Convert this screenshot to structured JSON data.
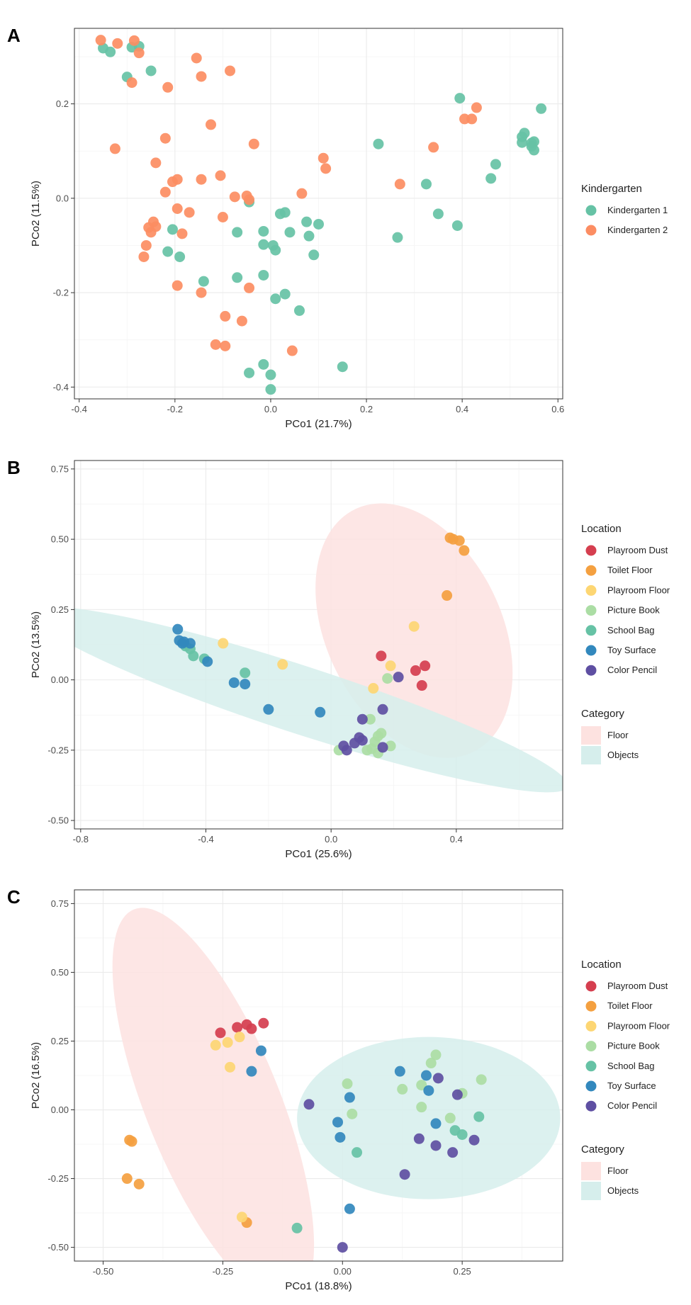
{
  "chart_data": [
    {
      "type": "scatter",
      "panel_label": "A",
      "xlabel": "PCo1 (21.7%)",
      "ylabel": "PCo2 (11.5%)",
      "xlim": [
        -0.41,
        0.61
      ],
      "ylim": [
        -0.425,
        0.36
      ],
      "xticks": [
        -0.4,
        -0.2,
        0.0,
        0.2,
        0.4,
        0.6
      ],
      "xtick_labels": [
        "-0.4",
        "-0.2",
        "0.0",
        "0.2",
        "0.4",
        "0.6"
      ],
      "yticks": [
        -0.4,
        -0.2,
        0.0,
        0.2
      ],
      "ytick_labels": [
        "-0.4",
        "-0.2",
        "0.0",
        "0.2"
      ],
      "legend": {
        "title": "Kindergarten",
        "position": "right"
      },
      "series": [
        {
          "name": "Kindergarten 1",
          "color": "#66c2a5",
          "points": [
            [
              -0.35,
              0.318
            ],
            [
              -0.335,
              0.31
            ],
            [
              -0.3,
              0.257
            ],
            [
              -0.29,
              0.32
            ],
            [
              -0.275,
              0.322
            ],
            [
              -0.25,
              0.27
            ],
            [
              -0.215,
              -0.113
            ],
            [
              -0.205,
              -0.066
            ],
            [
              -0.19,
              -0.124
            ],
            [
              -0.14,
              -0.176
            ],
            [
              -0.07,
              -0.072
            ],
            [
              -0.07,
              -0.168
            ],
            [
              -0.045,
              -0.008
            ],
            [
              -0.045,
              -0.37
            ],
            [
              -0.015,
              -0.07
            ],
            [
              -0.015,
              -0.098
            ],
            [
              -0.015,
              -0.163
            ],
            [
              -0.015,
              -0.352
            ],
            [
              0.0,
              -0.374
            ],
            [
              0.0,
              -0.405
            ],
            [
              0.005,
              -0.1
            ],
            [
              0.01,
              -0.213
            ],
            [
              0.01,
              -0.11
            ],
            [
              0.02,
              -0.033
            ],
            [
              0.03,
              -0.03
            ],
            [
              0.03,
              -0.203
            ],
            [
              0.04,
              -0.072
            ],
            [
              0.06,
              -0.238
            ],
            [
              0.075,
              -0.05
            ],
            [
              0.08,
              -0.08
            ],
            [
              0.09,
              -0.12
            ],
            [
              0.1,
              -0.055
            ],
            [
              0.15,
              -0.357
            ],
            [
              0.225,
              0.115
            ],
            [
              0.265,
              -0.083
            ],
            [
              0.325,
              0.03
            ],
            [
              0.35,
              -0.033
            ],
            [
              0.39,
              -0.058
            ],
            [
              0.395,
              0.212
            ],
            [
              0.46,
              0.042
            ],
            [
              0.47,
              0.072
            ],
            [
              0.525,
              0.13
            ],
            [
              0.525,
              0.118
            ],
            [
              0.53,
              0.138
            ],
            [
              0.545,
              0.117
            ],
            [
              0.545,
              0.11
            ],
            [
              0.55,
              0.102
            ],
            [
              0.55,
              0.12
            ],
            [
              0.565,
              0.19
            ]
          ]
        },
        {
          "name": "Kindergarten 2",
          "color": "#fc8d62",
          "points": [
            [
              -0.355,
              0.335
            ],
            [
              -0.325,
              0.105
            ],
            [
              -0.32,
              0.328
            ],
            [
              -0.29,
              0.245
            ],
            [
              -0.285,
              0.334
            ],
            [
              -0.275,
              0.308
            ],
            [
              -0.265,
              -0.124
            ],
            [
              -0.26,
              -0.1
            ],
            [
              -0.255,
              -0.062
            ],
            [
              -0.25,
              -0.072
            ],
            [
              -0.245,
              -0.05
            ],
            [
              -0.24,
              -0.06
            ],
            [
              -0.24,
              0.075
            ],
            [
              -0.22,
              0.013
            ],
            [
              -0.22,
              0.127
            ],
            [
              -0.215,
              0.235
            ],
            [
              -0.205,
              0.035
            ],
            [
              -0.195,
              0.04
            ],
            [
              -0.195,
              -0.022
            ],
            [
              -0.195,
              -0.185
            ],
            [
              -0.185,
              -0.075
            ],
            [
              -0.17,
              -0.03
            ],
            [
              -0.155,
              0.297
            ],
            [
              -0.145,
              0.04
            ],
            [
              -0.145,
              0.258
            ],
            [
              -0.145,
              -0.2
            ],
            [
              -0.125,
              0.156
            ],
            [
              -0.115,
              -0.31
            ],
            [
              -0.105,
              0.048
            ],
            [
              -0.1,
              -0.04
            ],
            [
              -0.095,
              -0.25
            ],
            [
              -0.095,
              -0.313
            ],
            [
              -0.085,
              0.27
            ],
            [
              -0.075,
              0.003
            ],
            [
              -0.06,
              -0.26
            ],
            [
              -0.05,
              0.005
            ],
            [
              -0.045,
              -0.19
            ],
            [
              -0.045,
              -0.003
            ],
            [
              -0.035,
              0.115
            ],
            [
              0.045,
              -0.323
            ],
            [
              0.065,
              0.01
            ],
            [
              0.11,
              0.085
            ],
            [
              0.115,
              0.063
            ],
            [
              0.27,
              0.03
            ],
            [
              0.34,
              0.108
            ],
            [
              0.405,
              0.168
            ],
            [
              0.42,
              0.168
            ],
            [
              0.43,
              0.192
            ]
          ]
        }
      ]
    },
    {
      "type": "scatter",
      "panel_label": "B",
      "xlabel": "PCo1 (25.6%)",
      "ylabel": "PCo2 (13.5%)",
      "xlim": [
        -0.82,
        0.74
      ],
      "ylim": [
        -0.53,
        0.78
      ],
      "xticks": [
        -0.8,
        -0.4,
        0.0,
        0.4
      ],
      "xtick_labels": [
        "-0.8",
        "-0.4",
        "0.0",
        "0.4"
      ],
      "yticks": [
        -0.5,
        -0.25,
        0.0,
        0.25,
        0.5,
        0.75
      ],
      "ytick_labels": [
        "-0.50",
        "-0.25",
        "0.00",
        "0.25",
        "0.50",
        "0.75"
      ],
      "legend": {
        "title": "Location",
        "position": "right"
      },
      "category_legend": {
        "title": "Category",
        "items": [
          {
            "name": "Floor",
            "color": "#fde2e0"
          },
          {
            "name": "Objects",
            "color": "#d6eeec"
          }
        ]
      },
      "ellipses": [
        {
          "category": "Floor",
          "center": [
            0.265,
            0.175
          ],
          "rx": 0.28,
          "ry": 0.48,
          "angle_deg": 26
        },
        {
          "category": "Objects",
          "center": [
            -0.1,
            -0.07
          ],
          "rx": 0.9,
          "ry": 0.12,
          "angle_deg": -18
        }
      ],
      "series": [
        {
          "name": "Playroom Dust",
          "color": "#d53e4f",
          "points": [
            [
              0.16,
              0.085
            ],
            [
              0.27,
              0.033
            ],
            [
              0.3,
              0.05
            ],
            [
              0.29,
              -0.02
            ]
          ]
        },
        {
          "name": "Toilet Floor",
          "color": "#f4a040",
          "points": [
            [
              0.38,
              0.505
            ],
            [
              0.39,
              0.5
            ],
            [
              0.41,
              0.495
            ],
            [
              0.425,
              0.46
            ],
            [
              0.37,
              0.3
            ]
          ]
        },
        {
          "name": "Playroom Floor",
          "color": "#fdd673",
          "points": [
            [
              -0.345,
              0.13
            ],
            [
              -0.155,
              0.055
            ],
            [
              0.265,
              0.19
            ],
            [
              0.19,
              0.05
            ],
            [
              0.135,
              -0.03
            ]
          ]
        },
        {
          "name": "Picture Book",
          "color": "#abdda4",
          "points": [
            [
              0.18,
              0.005
            ],
            [
              0.125,
              -0.14
            ],
            [
              0.15,
              -0.2
            ],
            [
              0.16,
              -0.19
            ],
            [
              0.14,
              -0.22
            ],
            [
              0.13,
              -0.245
            ],
            [
              0.15,
              -0.26
            ],
            [
              0.19,
              -0.235
            ],
            [
              0.025,
              -0.25
            ],
            [
              0.115,
              -0.25
            ]
          ]
        },
        {
          "name": "School Bag",
          "color": "#66c2a5",
          "points": [
            [
              -0.465,
              0.12
            ],
            [
              -0.45,
              0.11
            ],
            [
              -0.44,
              0.085
            ],
            [
              -0.405,
              0.075
            ],
            [
              -0.275,
              0.025
            ]
          ]
        },
        {
          "name": "Toy Surface",
          "color": "#3288bd",
          "points": [
            [
              -0.49,
              0.18
            ],
            [
              -0.485,
              0.14
            ],
            [
              -0.475,
              0.13
            ],
            [
              -0.47,
              0.135
            ],
            [
              -0.45,
              0.13
            ],
            [
              -0.395,
              0.065
            ],
            [
              -0.31,
              -0.01
            ],
            [
              -0.275,
              -0.015
            ],
            [
              -0.2,
              -0.105
            ],
            [
              -0.035,
              -0.115
            ]
          ]
        },
        {
          "name": "Color Pencil",
          "color": "#5e4fa2",
          "points": [
            [
              0.215,
              0.01
            ],
            [
              0.165,
              -0.105
            ],
            [
              0.1,
              -0.14
            ],
            [
              0.04,
              -0.235
            ],
            [
              0.05,
              -0.25
            ],
            [
              0.075,
              -0.225
            ],
            [
              0.09,
              -0.205
            ],
            [
              0.1,
              -0.215
            ],
            [
              0.165,
              -0.24
            ]
          ]
        }
      ]
    },
    {
      "type": "scatter",
      "panel_label": "C",
      "xlabel": "PCo1 (18.8%)",
      "ylabel": "PCo2 (16.5%)",
      "xlim": [
        -0.56,
        0.46
      ],
      "ylim": [
        -0.55,
        0.8
      ],
      "xticks": [
        -0.5,
        -0.25,
        0.0,
        0.25
      ],
      "xtick_labels": [
        "-0.50",
        "-0.25",
        "0.00",
        "0.25"
      ],
      "yticks": [
        -0.5,
        -0.25,
        0.0,
        0.25,
        0.5,
        0.75
      ],
      "ytick_labels": [
        "-0.50",
        "-0.25",
        "0.00",
        "0.25",
        "0.50",
        "0.75"
      ],
      "legend": {
        "title": "Location",
        "position": "right"
      },
      "category_legend": {
        "title": "Category",
        "items": [
          {
            "name": "Floor",
            "color": "#fde2e0"
          },
          {
            "name": "Objects",
            "color": "#d6eeec"
          }
        ]
      },
      "ellipses": [
        {
          "category": "Floor",
          "center": [
            -0.27,
            0.015
          ],
          "rx": 0.14,
          "ry": 0.77,
          "angle_deg": 22
        },
        {
          "category": "Objects",
          "center": [
            0.18,
            -0.03
          ],
          "rx": 0.275,
          "ry": 0.295,
          "angle_deg": 0
        }
      ],
      "series": [
        {
          "name": "Playroom Dust",
          "color": "#d53e4f",
          "points": [
            [
              -0.255,
              0.28
            ],
            [
              -0.22,
              0.3
            ],
            [
              -0.2,
              0.31
            ],
            [
              -0.19,
              0.295
            ],
            [
              -0.165,
              0.315
            ]
          ]
        },
        {
          "name": "Toilet Floor",
          "color": "#f4a040",
          "points": [
            [
              -0.445,
              -0.11
            ],
            [
              -0.44,
              -0.115
            ],
            [
              -0.45,
              -0.25
            ],
            [
              -0.425,
              -0.27
            ],
            [
              -0.2,
              -0.41
            ]
          ]
        },
        {
          "name": "Playroom Floor",
          "color": "#fdd673",
          "points": [
            [
              -0.265,
              0.235
            ],
            [
              -0.24,
              0.245
            ],
            [
              -0.215,
              0.265
            ],
            [
              -0.235,
              0.155
            ],
            [
              -0.21,
              -0.39
            ]
          ]
        },
        {
          "name": "Picture Book",
          "color": "#abdda4",
          "points": [
            [
              0.01,
              0.095
            ],
            [
              0.02,
              -0.015
            ],
            [
              0.125,
              0.075
            ],
            [
              0.165,
              0.09
            ],
            [
              0.185,
              0.17
            ],
            [
              0.195,
              0.2
            ],
            [
              0.165,
              0.01
            ],
            [
              0.225,
              -0.03
            ],
            [
              0.25,
              0.06
            ],
            [
              0.29,
              0.11
            ]
          ]
        },
        {
          "name": "School Bag",
          "color": "#66c2a5",
          "points": [
            [
              0.03,
              -0.155
            ],
            [
              0.235,
              -0.075
            ],
            [
              0.25,
              -0.09
            ],
            [
              0.285,
              -0.025
            ],
            [
              -0.095,
              -0.43
            ]
          ]
        },
        {
          "name": "Toy Surface",
          "color": "#3288bd",
          "points": [
            [
              -0.17,
              0.215
            ],
            [
              -0.19,
              0.14
            ],
            [
              -0.01,
              -0.045
            ],
            [
              0.015,
              0.045
            ],
            [
              -0.005,
              -0.1
            ],
            [
              0.12,
              0.14
            ],
            [
              0.175,
              0.125
            ],
            [
              0.18,
              0.07
            ],
            [
              0.195,
              -0.05
            ],
            [
              0.015,
              -0.36
            ]
          ]
        },
        {
          "name": "Color Pencil",
          "color": "#5e4fa2",
          "points": [
            [
              -0.07,
              0.02
            ],
            [
              0.13,
              -0.235
            ],
            [
              0.2,
              0.115
            ],
            [
              0.16,
              -0.105
            ],
            [
              0.195,
              -0.13
            ],
            [
              0.24,
              0.055
            ],
            [
              0.23,
              -0.155
            ],
            [
              0.275,
              -0.11
            ],
            [
              0.0,
              -0.5
            ]
          ]
        }
      ]
    }
  ]
}
